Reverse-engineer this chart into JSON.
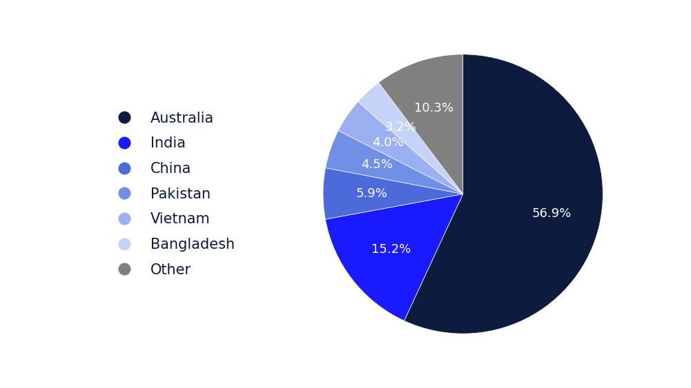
{
  "labels": [
    "Australia",
    "India",
    "China",
    "Pakistan",
    "Vietnam",
    "Bangladesh",
    "Other"
  ],
  "values": [
    56.9,
    15.2,
    5.9,
    4.5,
    4.0,
    3.2,
    10.3
  ],
  "colors": [
    "#0d1b3e",
    "#1a1aff",
    "#4d6adb",
    "#7090e8",
    "#9ab0f0",
    "#c5d3f8",
    "#808080"
  ],
  "label_texts": [
    "56.9%",
    "15.2%",
    "5.9%",
    "4.5%",
    "4.0%",
    "3.2%",
    "10.3%"
  ],
  "background_color": "#ffffff",
  "legend_fontsize": 15,
  "label_fontsize": 13,
  "startangle": 90
}
